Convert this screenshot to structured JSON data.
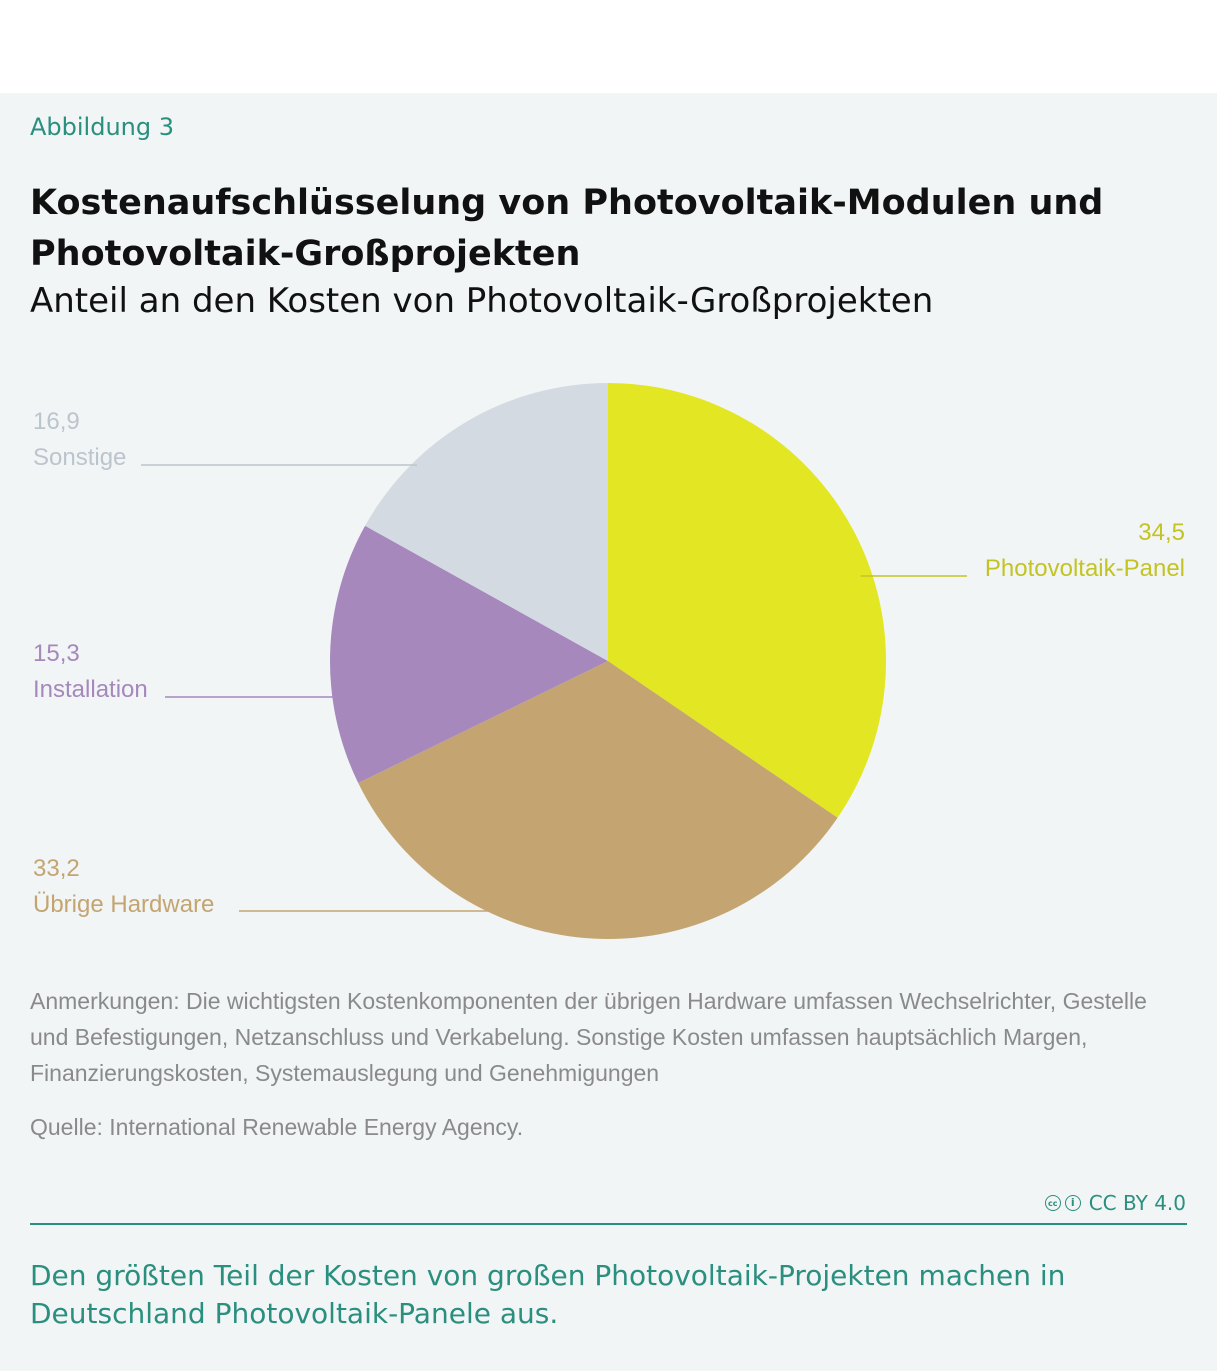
{
  "figure_label": "Abbildung 3",
  "title": "Kostenaufschlüsselung von Photovoltaik-Modulen und Photovoltaik-Großprojekten",
  "subtitle": "Anteil an den Kosten von Photovoltaik-Großprojekten",
  "chart_data": {
    "type": "pie",
    "slices": [
      {
        "label": "Photovoltaik-Panel",
        "value": 34.5,
        "value_label": "34,5",
        "color": "#e3e622"
      },
      {
        "label": "Übrige Hardware",
        "value": 33.2,
        "value_label": "33,2",
        "color": "#c4a572"
      },
      {
        "label": "Installation",
        "value": 15.3,
        "value_label": "15,3",
        "color": "#a688bd"
      },
      {
        "label": "Sonstige",
        "value": 16.9,
        "value_label": "16,9",
        "color": "#d4dae1"
      }
    ],
    "label_colors": {
      "Photovoltaik-Panel": "#c3c424",
      "Übrige Hardware": "#c4a572",
      "Installation": "#a688bd",
      "Sonstige": "#bcc4ce"
    }
  },
  "notes": "Anmerkungen: Die wichtigsten Kostenkomponenten der übrigen Hardware umfassen Wechselrichter, Gestelle und Befestigungen, Netzanschluss und Verkabelung. Sonstige Kosten umfassen hauptsächlich Margen, Finanzierungskosten, Systemauslegung und Genehmigungen",
  "source": "Quelle: International Renewable Energy Agency.",
  "license": "CC BY 4.0",
  "caption": "Den größten Teil der Kosten von großen Photovoltaik-Projekten machen in Deutschland Photovoltaik-Panele aus."
}
